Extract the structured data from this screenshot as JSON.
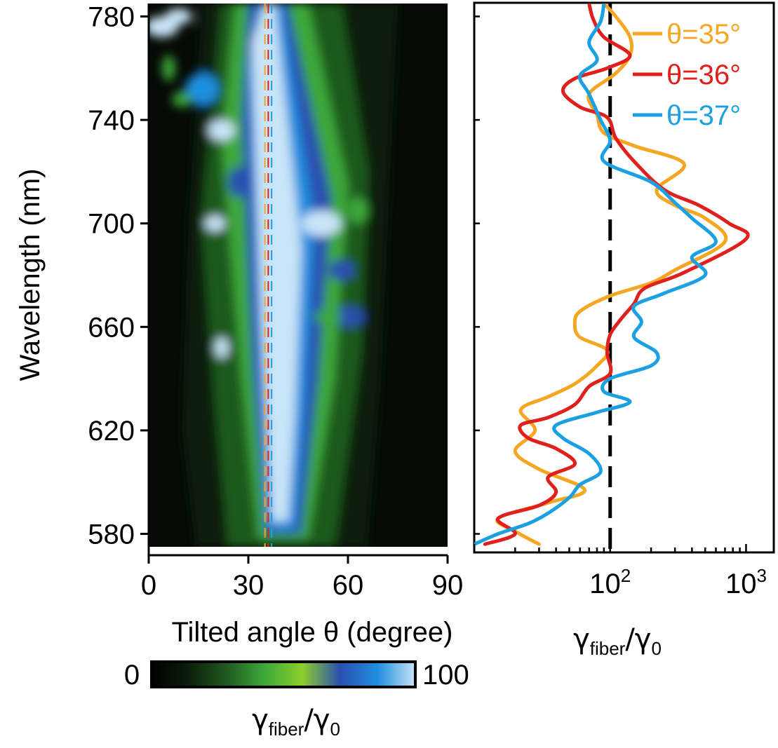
{
  "chart_data": [
    {
      "type": "heatmap",
      "xlabel": "Tilted angle θ (degree)",
      "ylabel": "Wavelength (nm)",
      "xlim": [
        0,
        90
      ],
      "ylim": [
        575,
        785
      ],
      "xticks": [
        "0",
        "30",
        "60",
        "90"
      ],
      "yticks": [
        "580",
        "620",
        "660",
        "700",
        "740",
        "780"
      ],
      "colorbar": {
        "min_label": "0",
        "max_label": "100",
        "label_main": "γ",
        "label_sub": "fiber",
        "label_sep": "/γ",
        "label_sub2": "0",
        "colors": [
          "#000000",
          "#0b1f0b",
          "#1f5a1f",
          "#3ea83a",
          "#8ccf2c",
          "#2a4fb0",
          "#1f8fe0",
          "#c8e4f8"
        ]
      },
      "markers": [
        {
          "x": 35,
          "color": "#f5a623"
        },
        {
          "x": 36,
          "color": "#e0201c"
        },
        {
          "x": 37,
          "color": "#1ba1e2"
        }
      ]
    },
    {
      "type": "line",
      "xscale": "log",
      "xlim": [
        10,
        1600
      ],
      "ylim": [
        575,
        785
      ],
      "xticks": [
        {
          "value": 100,
          "base": "10",
          "exp": "2"
        },
        {
          "value": 1000,
          "base": "10",
          "exp": "3"
        }
      ],
      "xlabel_main": "γ",
      "xlabel_sub": "fiber",
      "xlabel_sep": "/γ",
      "xlabel_sub2": "0",
      "reference_line": 100,
      "legend_position": "top-right",
      "series": [
        {
          "name": "θ=35°",
          "color": "#f5a623",
          "points": [
            [
              30,
              576
            ],
            [
              20,
              581
            ],
            [
              15,
              586
            ],
            [
              35,
              592
            ],
            [
              65,
              597
            ],
            [
              30,
              605
            ],
            [
              20,
              612
            ],
            [
              28,
              620
            ],
            [
              22,
              628
            ],
            [
              35,
              633
            ],
            [
              55,
              638
            ],
            [
              80,
              645
            ],
            [
              95,
              651
            ],
            [
              60,
              656
            ],
            [
              55,
              661
            ],
            [
              60,
              666
            ],
            [
              100,
              672
            ],
            [
              200,
              677
            ],
            [
              300,
              682
            ],
            [
              700,
              693
            ],
            [
              500,
              702
            ],
            [
              300,
              707
            ],
            [
              220,
              713
            ],
            [
              350,
              723
            ],
            [
              150,
              730
            ],
            [
              90,
              735
            ],
            [
              80,
              742
            ],
            [
              70,
              750
            ],
            [
              110,
              758
            ],
            [
              140,
              765
            ],
            [
              140,
              772
            ],
            [
              110,
              780
            ],
            [
              90,
              785
            ]
          ]
        },
        {
          "name": "θ=36°",
          "color": "#e0201c",
          "points": [
            [
              12,
              576
            ],
            [
              20,
              580
            ],
            [
              15,
              586
            ],
            [
              30,
              591
            ],
            [
              40,
              596
            ],
            [
              35,
              602
            ],
            [
              55,
              607
            ],
            [
              40,
              613
            ],
            [
              25,
              617
            ],
            [
              22,
              622
            ],
            [
              35,
              625
            ],
            [
              55,
              630
            ],
            [
              70,
              637
            ],
            [
              100,
              642
            ],
            [
              95,
              650
            ],
            [
              100,
              657
            ],
            [
              120,
              663
            ],
            [
              150,
              669
            ],
            [
              180,
              675
            ],
            [
              350,
              681
            ],
            [
              1000,
              694
            ],
            [
              750,
              700
            ],
            [
              450,
              707
            ],
            [
              250,
              713
            ],
            [
              150,
              724
            ],
            [
              110,
              733
            ],
            [
              95,
              741
            ],
            [
              60,
              745
            ],
            [
              45,
              751
            ],
            [
              55,
              756
            ],
            [
              95,
              760
            ],
            [
              140,
              765
            ],
            [
              90,
              772
            ],
            [
              75,
              779
            ],
            [
              70,
              785
            ]
          ]
        },
        {
          "name": "θ=37°",
          "color": "#1ba1e2",
          "points": [
            [
              10,
              576
            ],
            [
              15,
              580
            ],
            [
              25,
              584
            ],
            [
              35,
              588
            ],
            [
              50,
              594
            ],
            [
              60,
              599
            ],
            [
              85,
              604
            ],
            [
              70,
              611
            ],
            [
              45,
              617
            ],
            [
              40,
              622
            ],
            [
              80,
              627
            ],
            [
              140,
              631
            ],
            [
              90,
              635
            ],
            [
              100,
              640
            ],
            [
              200,
              645
            ],
            [
              220,
              650
            ],
            [
              150,
              656
            ],
            [
              170,
              662
            ],
            [
              150,
              668
            ],
            [
              250,
              673
            ],
            [
              500,
              680
            ],
            [
              400,
              687
            ],
            [
              600,
              693
            ],
            [
              400,
              702
            ],
            [
              300,
              708
            ],
            [
              200,
              716
            ],
            [
              90,
              724
            ],
            [
              100,
              732
            ],
            [
              85,
              740
            ],
            [
              70,
              750
            ],
            [
              60,
              757
            ],
            [
              80,
              763
            ],
            [
              70,
              770
            ],
            [
              85,
              778
            ],
            [
              90,
              785
            ]
          ]
        }
      ]
    }
  ]
}
